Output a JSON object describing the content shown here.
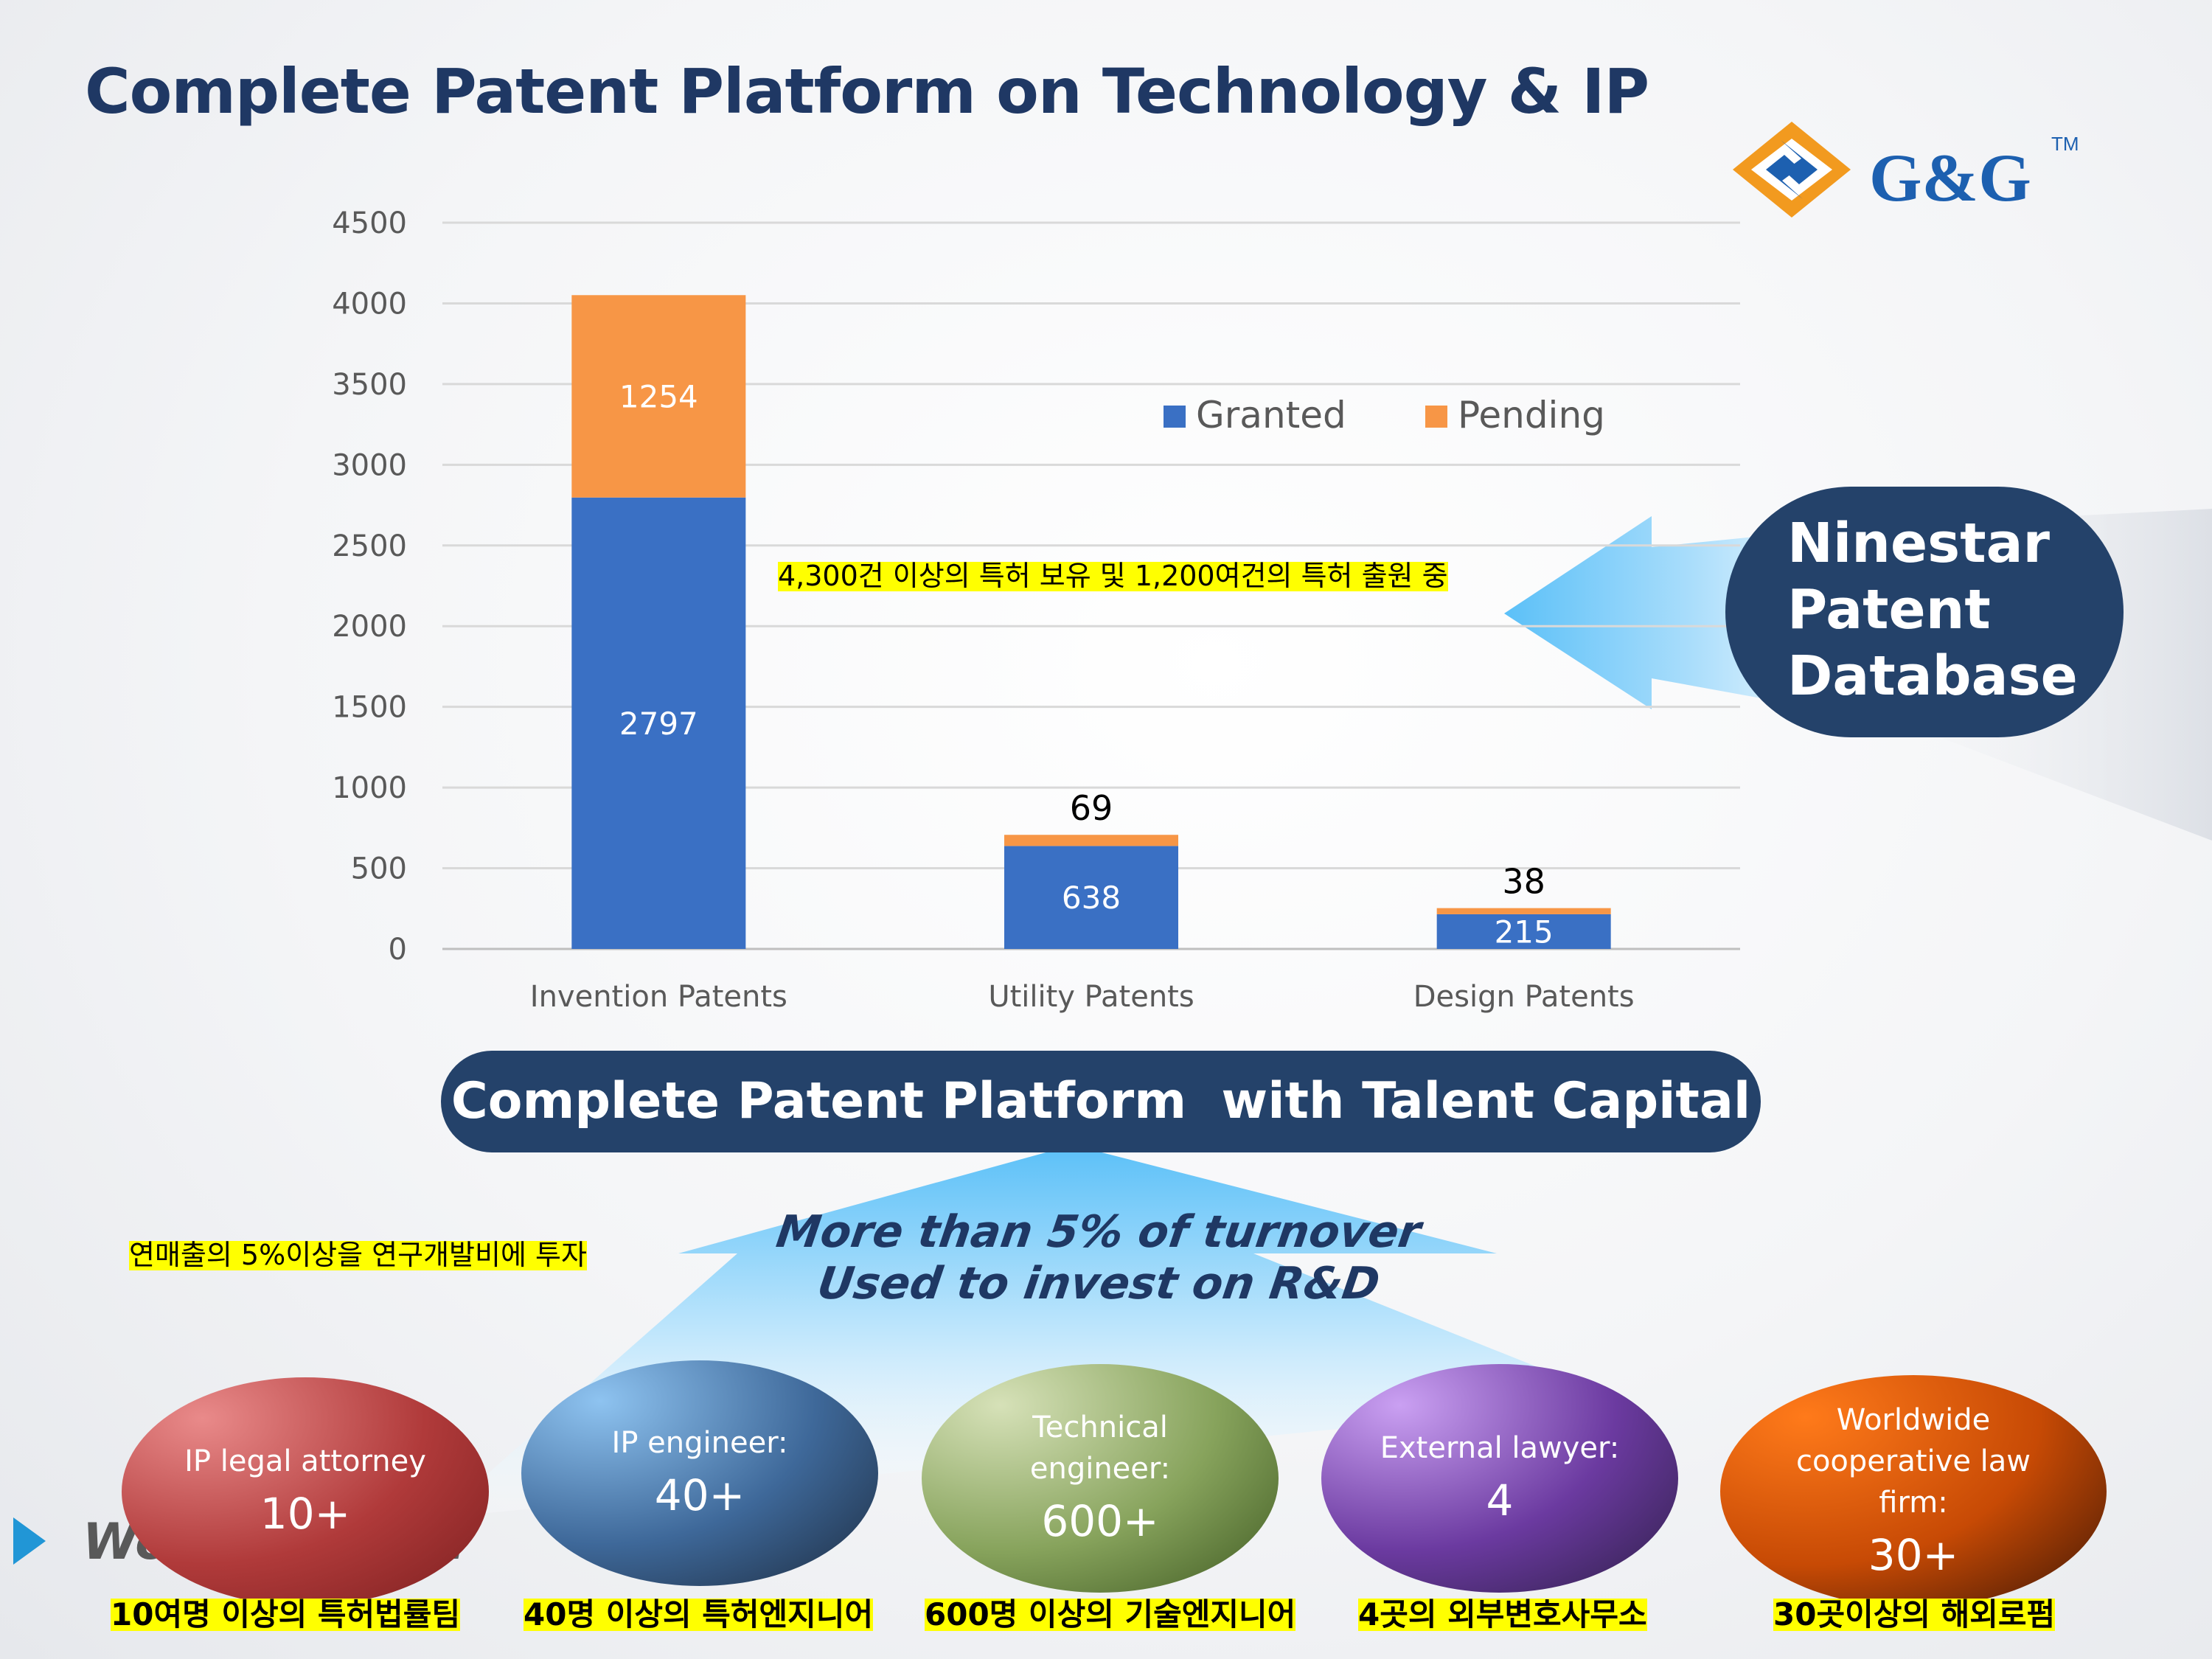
{
  "page": {
    "title": "Complete Patent Platform on Technology & IP",
    "logo_text": "G&G",
    "logo_tm": "TM"
  },
  "chart_data": {
    "type": "bar",
    "stacked": true,
    "categories": [
      "Invention Patents",
      "Utility Patents",
      "Design Patents"
    ],
    "series": [
      {
        "name": "Granted",
        "values": [
          2797,
          638,
          215
        ],
        "color": "#3a70c4"
      },
      {
        "name": "Pending",
        "values": [
          1254,
          69,
          38
        ],
        "color": "#f79646"
      }
    ],
    "ylim": [
      0,
      4500
    ],
    "yticks": [
      0,
      500,
      1000,
      1500,
      2000,
      2500,
      3000,
      3500,
      4000,
      4500
    ],
    "grid": true,
    "legend_position": "top-right"
  },
  "annotations": {
    "kr_patent_note": "4,300건 이상의 특허 보유 및 1,200여건의 특허 출원 중",
    "database_label": [
      "Ninestar",
      "Patent",
      "Database"
    ],
    "platform_label": "Complete Patent Platform  with Talent Capital",
    "rd_line1": "More than 5% of turnover",
    "rd_line2": "Used to invest on R&D",
    "kr_rd_note": "연매출의 5%이상을 연구개발비에 투자",
    "footer_partial": "Wo           ima"
  },
  "talent": [
    {
      "role": "IP legal attorney",
      "count": "10+",
      "caption": "10여명 이상의 특허법률팀",
      "colors": [
        "#e98a8a",
        "#b03a3a",
        "#7b1f1f"
      ]
    },
    {
      "role": "IP engineer:",
      "count": "40+",
      "caption": "40명 이상의 특허엔지니어",
      "colors": [
        "#8ec3f0",
        "#3e6899",
        "#1d2c40"
      ]
    },
    {
      "role": "Technical engineer:",
      "count": "600+",
      "caption": "600명 이상의 기술엔지니어",
      "colors": [
        "#d6e1b8",
        "#87a35c",
        "#3f5a22"
      ]
    },
    {
      "role": "External lawyer:",
      "count": "4",
      "caption": "4곳의 외부변호사무소",
      "colors": [
        "#caa0f2",
        "#6b3aa0",
        "#2e1f48"
      ]
    },
    {
      "role": "Worldwide cooperative law firm:",
      "count": "30+",
      "caption": "30곳이상의 해외로펌",
      "colors": [
        "#ff7a1a",
        "#c74a05",
        "#3b1505"
      ]
    }
  ]
}
